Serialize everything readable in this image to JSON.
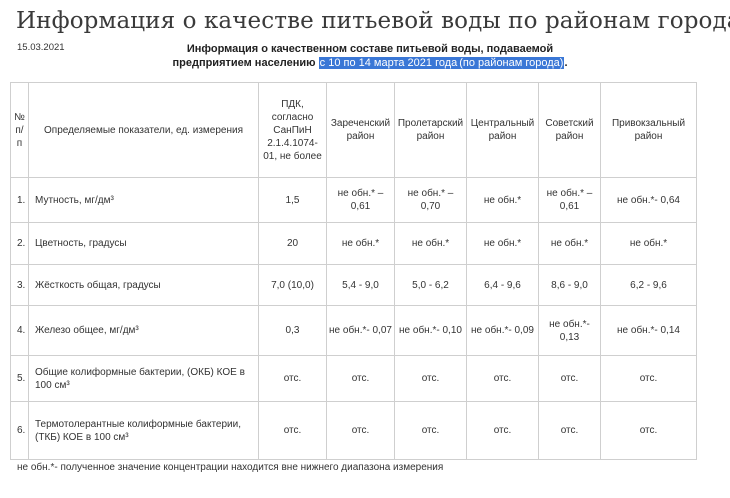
{
  "title": "Информация о качестве питьевой воды по районам города",
  "date": "15.03.2021",
  "subheading": {
    "line1": "Информация о качественном составе питьевой воды, подаваемой",
    "line2_prefix": "предприятием населению",
    "line2_period": "с 10 по 14 марта 2021 года",
    "line2_district": "(по районам города)",
    "line2_suffix": "."
  },
  "table": {
    "headers": {
      "num": "№ п/ п",
      "indicator": "Определяемые показатели, ед. измерения",
      "pdk": "ПДК, согласно СанПиН 2.1.4.1074-01, не более",
      "zarechensky": "Зареченский район",
      "proletarsky": "Пролетарский район",
      "centralny": "Центральный район",
      "sovetsky": "Советский район",
      "privokzalny": "Привокзальный район"
    },
    "rows": [
      {
        "num": "1.",
        "indicator": "Мутность, мг/дм³",
        "pdk": "1,5",
        "zarechensky": "не обн.* – 0,61",
        "proletarsky": "не обн.* – 0,70",
        "centralny": "не обн.*",
        "sovetsky": "не обн.* – 0,61",
        "privokzalny": "не обн.*- 0,64"
      },
      {
        "num": "2.",
        "indicator": "Цветность, градусы",
        "pdk": "20",
        "zarechensky": "не обн.*",
        "proletarsky": "не обн.*",
        "centralny": "не обн.*",
        "sovetsky": "не обн.*",
        "privokzalny": "не обн.*"
      },
      {
        "num": "3.",
        "indicator": "Жёсткость общая, градусы",
        "pdk": "7,0 (10,0)",
        "zarechensky": "5,4 - 9,0",
        "proletarsky": "5,0 - 6,2",
        "centralny": "6,4 - 9,6",
        "sovetsky": "8,6 - 9,0",
        "privokzalny": "6,2 - 9,6"
      },
      {
        "num": "4.",
        "indicator": "Железо общее, мг/дм³",
        "pdk": "0,3",
        "zarechensky": "не обн.*- 0,07",
        "proletarsky": "не обн.*- 0,10",
        "centralny": "не обн.*- 0,09",
        "sovetsky": "не обн.*- 0,13",
        "privokzalny": "не обн.*- 0,14"
      },
      {
        "num": "5.",
        "indicator": "Общие колиформные бактерии, (ОКБ) КОЕ в 100 см³",
        "pdk": "отс.",
        "zarechensky": "отс.",
        "proletarsky": "отс.",
        "centralny": "отс.",
        "sovetsky": "отс.",
        "privokzalny": "отс."
      },
      {
        "num": "6.",
        "indicator": "Термотолерантные колиформные бактерии, (ТКБ) КОЕ в 100 см³",
        "pdk": "отс.",
        "zarechensky": "отс.",
        "proletarsky": "отс.",
        "centralny": "отс.",
        "sovetsky": "отс.",
        "privokzalny": "отс."
      }
    ]
  },
  "footnote": "не обн.*- полученное значение концентрации находится вне нижнего диапазона измерения"
}
